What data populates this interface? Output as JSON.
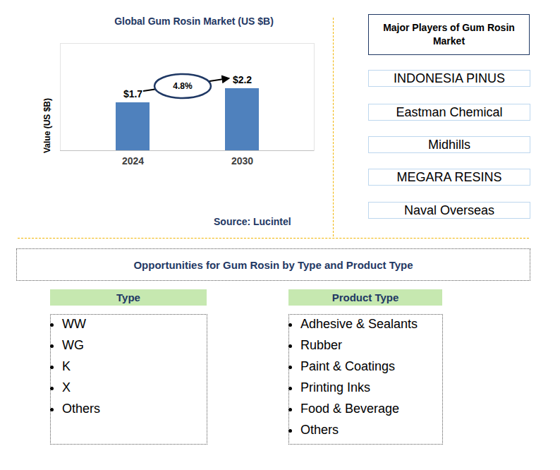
{
  "chart_data": {
    "type": "bar",
    "title": "Global Gum Rosin Market (US $B)",
    "categories": [
      "2024",
      "2030"
    ],
    "values": [
      1.7,
      2.2
    ],
    "value_labels": [
      "$1.7",
      "$2.2"
    ],
    "color": "#4f81bd",
    "y_label": "Value (US $B)",
    "ylim": [
      0,
      3.8
    ],
    "yticks": [],
    "tick_labels": "x",
    "data_labels": true,
    "annotation": "4.8%",
    "source": "Source: Lucintel"
  },
  "players": {
    "title": "Major Players of Gum Rosin Market",
    "items": [
      "INDONESIA PINUS",
      "Eastman Chemical",
      "Midhills",
      "MEGARA RESINS",
      "Naval Overseas"
    ]
  },
  "opportunities": {
    "title": "Opportunities for Gum Rosin by Type and Product Type",
    "groups": [
      {
        "title": "Type",
        "items": [
          "WW",
          "WG",
          "K",
          "X",
          "Others"
        ]
      },
      {
        "title": "Product Type",
        "items": [
          "Adhesive & Sealants",
          "Rubber",
          "Paint & Coatings",
          "Printing Inks",
          "Food & Beverage",
          "Others"
        ]
      }
    ]
  }
}
